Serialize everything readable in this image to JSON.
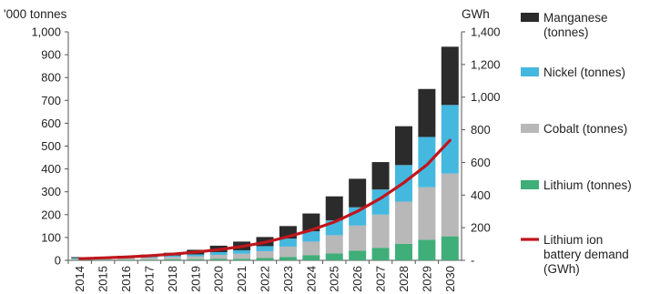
{
  "chart_data": {
    "type": "bar",
    "stacked": true,
    "categories": [
      "2014",
      "2015",
      "2016",
      "2017",
      "2018",
      "2019",
      "2020",
      "2021",
      "2022",
      "2023",
      "2024",
      "2025",
      "2026",
      "2027",
      "2028",
      "2029",
      "2030"
    ],
    "left_axis": {
      "unit_label": "'000 tonnes",
      "ylim": [
        0,
        1000
      ],
      "ticks": [
        "0",
        "100",
        "200",
        "300",
        "400",
        "500",
        "600",
        "700",
        "800",
        "900",
        "1,000"
      ]
    },
    "right_axis": {
      "unit_label": "GWh",
      "ylim": [
        0,
        1400
      ],
      "ticks": [
        "-",
        "200",
        "400",
        "600",
        "800",
        "1,000",
        "1,200",
        "1,400"
      ]
    },
    "series": [
      {
        "name": "Lithium (tonnes)",
        "color": "#3fae78",
        "values": [
          2,
          2,
          3,
          3,
          4,
          5,
          6,
          7,
          10,
          15,
          22,
          30,
          42,
          55,
          72,
          90,
          105
        ]
      },
      {
        "name": "Cobalt (tonnes)",
        "color": "#b8b8b8",
        "values": [
          5,
          6,
          7,
          9,
          11,
          13,
          18,
          22,
          30,
          45,
          60,
          80,
          110,
          145,
          185,
          230,
          275
        ]
      },
      {
        "name": "Nickel (tonnes)",
        "color": "#45b8e0",
        "values": [
          3,
          3,
          4,
          5,
          6,
          8,
          12,
          15,
          22,
          35,
          45,
          65,
          80,
          110,
          160,
          220,
          300
        ]
      },
      {
        "name": "Manganese (tonnes)",
        "color": "#2b2b2b",
        "values": [
          4,
          5,
          6,
          8,
          12,
          20,
          28,
          38,
          40,
          55,
          78,
          105,
          125,
          120,
          170,
          210,
          255
        ]
      }
    ],
    "line_series": {
      "name": "Lithium ion battery demand (GWh)",
      "color": "#c0161c",
      "values": [
        10,
        15,
        20,
        28,
        38,
        50,
        65,
        85,
        110,
        145,
        185,
        235,
        300,
        380,
        475,
        585,
        735
      ]
    },
    "legend_position": "right",
    "grid": false
  }
}
